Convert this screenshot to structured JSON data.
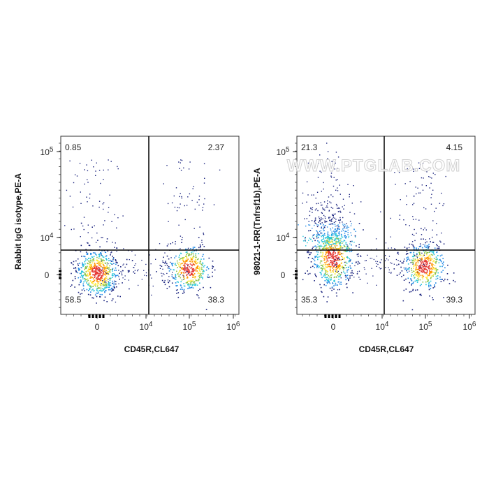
{
  "watermark": "WWW.PTGLAB.COM",
  "chart_data": [
    {
      "type": "scatter",
      "plot_kind": "flow-cytometry density dot plot with quadrant gates",
      "xlabel": "CD45R,CL647",
      "ylabel": "Rabbit IgG isotype,PE-A",
      "x_ticks": [
        "0",
        "10^4",
        "10^5",
        "10^6"
      ],
      "y_ticks": [
        "0",
        "10^4",
        "10^5"
      ],
      "quadrants": {
        "upper_left": "0.85",
        "upper_right": "2.37",
        "lower_left": "58.5",
        "lower_right": "38.3"
      },
      "populations": [
        {
          "name": "",
          "x_center": 0,
          "y_center": 0,
          "weight": 0.585
        },
        {
          "name": "",
          "x_center": 100000,
          "y_center": 0,
          "weight": 0.383
        }
      ]
    },
    {
      "type": "scatter",
      "plot_kind": "flow-cytometry density dot plot with quadrant gates",
      "xlabel": "CD45R,CL647",
      "ylabel": "98021-1-RR(Tnfrsf1b),PE-A",
      "x_ticks": [
        "0",
        "10^4",
        "10^5",
        "10^6"
      ],
      "y_ticks": [
        "0",
        "10^4",
        "10^5"
      ],
      "quadrants": {
        "upper_left": "21.3",
        "upper_right": "4.15",
        "lower_left": "35.3",
        "lower_right": "39.3"
      },
      "populations": [
        {
          "name": "",
          "x_center": 0,
          "y_center": 0,
          "weight": 0.566
        },
        {
          "name": "",
          "x_center": 100000,
          "y_center": 0,
          "weight": 0.434
        }
      ]
    }
  ],
  "colors": {
    "density_low": "#1a237e",
    "density_mid1": "#1e88e5",
    "density_mid2": "#26c6da",
    "density_mid3": "#8bc34a",
    "density_high1": "#ffeb3b",
    "density_high2": "#ff9800",
    "density_peak": "#e53935",
    "gate_line": "#000000",
    "frame": "#333333"
  }
}
